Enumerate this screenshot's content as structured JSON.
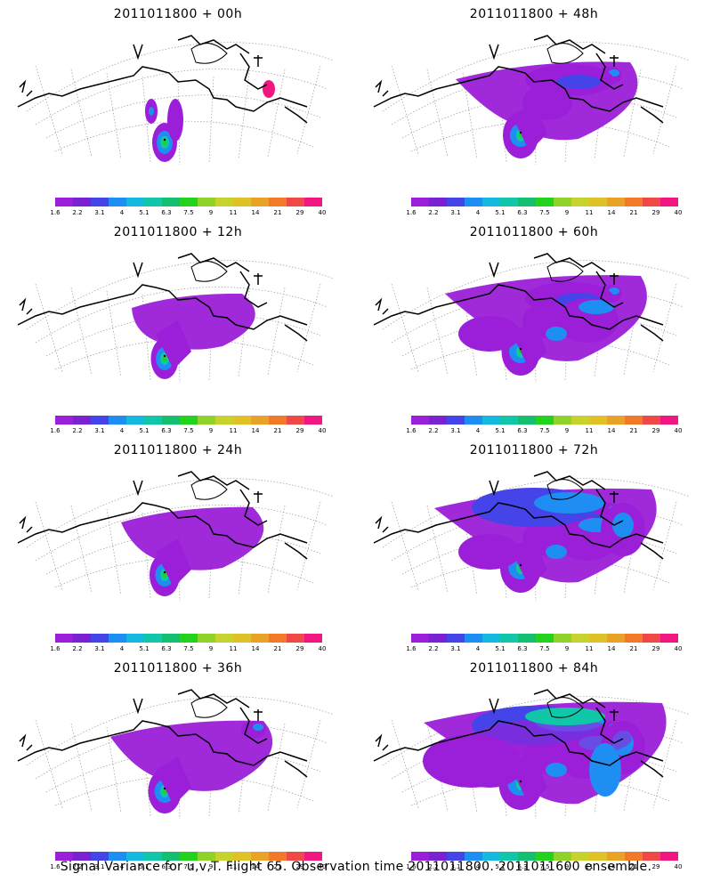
{
  "panels": [
    {
      "title": "2011011800 + 00h",
      "level": 0
    },
    {
      "title": "2011011800 + 48h",
      "level": 4
    },
    {
      "title": "2011011800 + 12h",
      "level": 1
    },
    {
      "title": "2011011800 + 60h",
      "level": 5
    },
    {
      "title": "2011011800 + 24h",
      "level": 2
    },
    {
      "title": "2011011800 + 72h",
      "level": 6
    },
    {
      "title": "2011011800 + 36h",
      "level": 3
    },
    {
      "title": "2011011800 + 84h",
      "level": 7
    }
  ],
  "colorbar": {
    "colors": [
      "#9b1fd8",
      "#7a22d2",
      "#4444e8",
      "#1f8ef2",
      "#14b8e0",
      "#10c8a8",
      "#14c070",
      "#22d21e",
      "#8ed22a",
      "#c8d22e",
      "#e0c228",
      "#e8a228",
      "#f07a28",
      "#f04848",
      "#f01880"
    ],
    "labels": [
      "1.6",
      "2.2",
      "3.1",
      "4",
      "5.1",
      "6.3",
      "7.5",
      "9",
      "11",
      "14",
      "21",
      "29",
      "40"
    ]
  },
  "footer": "Signal Variance for u,v,T. Flight 65. Observation time 2011011800. 2011011600 ensemble.",
  "legend_colors": {
    "low": "#9b1fd8",
    "mid": "#1f8ef2",
    "high": "#22d21e",
    "peak": "#f01880"
  }
}
